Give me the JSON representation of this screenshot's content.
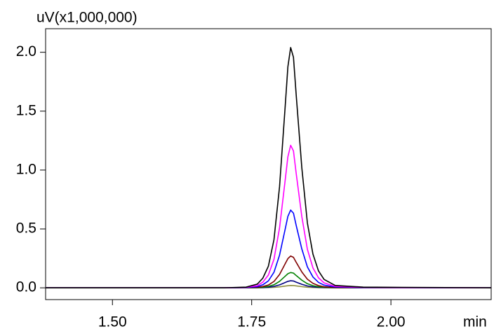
{
  "chart_data": {
    "type": "line",
    "y_label": "uV(x1,000,000)",
    "x_label": "min",
    "xlim": [
      1.38,
      2.18
    ],
    "ylim": [
      -0.1,
      2.2
    ],
    "xticks": [
      {
        "value": 1.5,
        "label": "1.50"
      },
      {
        "value": 1.75,
        "label": "1.75"
      },
      {
        "value": 2.0,
        "label": "2.00"
      }
    ],
    "yticks": [
      {
        "value": 0,
        "label": "0.0"
      },
      0.5,
      {
        "value": 1,
        "label": "1.0"
      },
      1.5,
      {
        "value": 2,
        "label": "2.0"
      }
    ],
    "x": [
      1.38,
      1.7,
      1.74,
      1.76,
      1.77,
      1.78,
      1.79,
      1.8,
      1.81,
      1.815,
      1.82,
      1.825,
      1.83,
      1.84,
      1.85,
      1.86,
      1.87,
      1.88,
      1.9,
      1.95,
      2.02,
      2.18
    ],
    "series": [
      {
        "color": "#8c8c3c",
        "values": [
          0,
          0,
          0,
          0,
          0.001,
          0.002,
          0.004,
          0.008,
          0.015,
          0.018,
          0.02,
          0.019,
          0.016,
          0.01,
          0.005,
          0.003,
          0.001,
          0.001,
          0,
          0,
          0,
          0
        ]
      },
      {
        "color": "#000080",
        "values": [
          0,
          0,
          0,
          0.001,
          0.002,
          0.005,
          0.012,
          0.025,
          0.045,
          0.055,
          0.06,
          0.058,
          0.048,
          0.03,
          0.016,
          0.008,
          0.004,
          0.002,
          0.001,
          0,
          0,
          0
        ]
      },
      {
        "color": "#008000",
        "values": [
          0,
          0,
          0,
          0.002,
          0.005,
          0.012,
          0.026,
          0.055,
          0.098,
          0.12,
          0.13,
          0.125,
          0.104,
          0.065,
          0.035,
          0.018,
          0.009,
          0.005,
          0.001,
          0,
          0,
          0
        ]
      },
      {
        "color": "#800000",
        "values": [
          0,
          0,
          0.001,
          0.004,
          0.011,
          0.024,
          0.054,
          0.113,
          0.203,
          0.248,
          0.27,
          0.259,
          0.216,
          0.135,
          0.073,
          0.038,
          0.019,
          0.009,
          0.003,
          0.001,
          0.001,
          0
        ]
      },
      {
        "color": "#0000ff",
        "values": [
          0,
          0,
          0.002,
          0.01,
          0.026,
          0.059,
          0.132,
          0.277,
          0.495,
          0.607,
          0.66,
          0.634,
          0.528,
          0.33,
          0.178,
          0.092,
          0.046,
          0.023,
          0.007,
          0.002,
          0.001,
          0
        ]
      },
      {
        "color": "#ff00ff",
        "values": [
          0,
          0,
          0.004,
          0.018,
          0.048,
          0.109,
          0.242,
          0.508,
          0.908,
          1.113,
          1.21,
          1.162,
          0.968,
          0.605,
          0.327,
          0.169,
          0.085,
          0.042,
          0.012,
          0.004,
          0.002,
          0
        ]
      },
      {
        "color": "#000000",
        "values": [
          0,
          0,
          0.006,
          0.031,
          0.082,
          0.184,
          0.408,
          0.857,
          1.53,
          1.877,
          2.04,
          1.958,
          1.632,
          1.02,
          0.551,
          0.286,
          0.143,
          0.071,
          0.02,
          0.006,
          0.004,
          0
        ]
      }
    ]
  }
}
